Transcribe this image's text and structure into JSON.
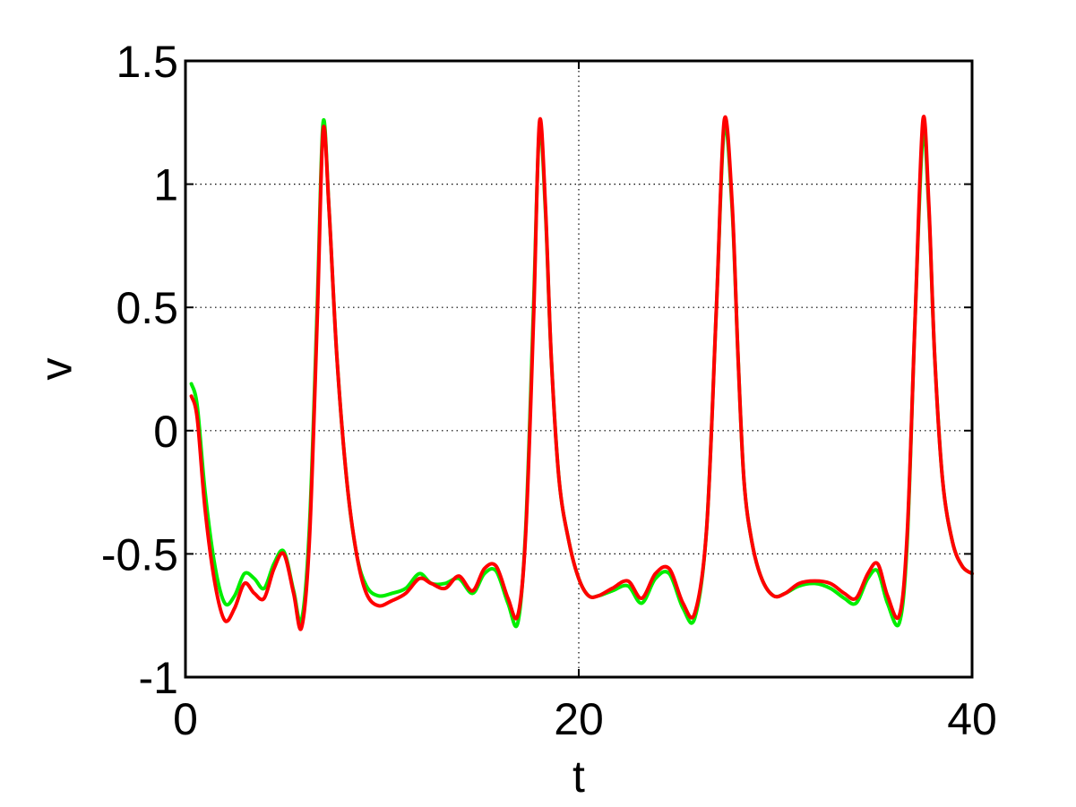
{
  "chart_data": {
    "type": "line",
    "title": "",
    "xlabel": "t",
    "ylabel": "v",
    "xlim": [
      0,
      40
    ],
    "ylim": [
      -1,
      1.5
    ],
    "xticks": [
      0,
      20,
      40
    ],
    "xtick_labels": [
      "0",
      "20",
      "40"
    ],
    "yticks": [
      -1,
      -0.5,
      0,
      0.5,
      1,
      1.5
    ],
    "ytick_labels": [
      "-1",
      "-0.5",
      "0",
      "0.5",
      "1",
      "1.5"
    ],
    "grid": true,
    "series": [
      {
        "color": "#00ee00",
        "x": [
          0.3,
          0.6,
          1.0,
          1.5,
          2.0,
          2.5,
          3.0,
          3.5,
          4.0,
          4.5,
          5.0,
          5.5,
          5.9,
          6.3,
          6.7,
          7.0,
          7.3,
          7.7,
          8.2,
          8.7,
          9.2,
          9.8,
          10.5,
          11.2,
          11.9,
          12.5,
          13.2,
          13.9,
          14.6,
          15.2,
          15.8,
          16.4,
          16.9,
          17.3,
          17.7,
          18.0,
          18.3,
          18.6,
          19.0,
          19.5,
          20.0,
          20.5,
          21.0,
          21.7,
          22.5,
          23.2,
          23.9,
          24.6,
          25.3,
          25.9,
          26.5,
          27.0,
          27.4,
          27.8,
          28.1,
          28.4,
          28.8,
          29.3,
          29.9,
          30.5,
          31.2,
          32.0,
          32.8,
          33.5,
          34.1,
          34.7,
          35.2,
          35.7,
          36.3,
          36.7,
          37.1,
          37.5,
          37.8,
          38.1,
          38.5,
          39.0,
          39.5,
          40.0
        ],
        "y": [
          0.19,
          0.1,
          -0.25,
          -0.55,
          -0.7,
          -0.67,
          -0.58,
          -0.6,
          -0.64,
          -0.54,
          -0.49,
          -0.65,
          -0.77,
          -0.4,
          0.5,
          1.25,
          0.9,
          0.3,
          -0.2,
          -0.5,
          -0.63,
          -0.67,
          -0.66,
          -0.64,
          -0.58,
          -0.62,
          -0.62,
          -0.6,
          -0.66,
          -0.58,
          -0.57,
          -0.7,
          -0.78,
          -0.4,
          0.5,
          1.22,
          0.9,
          0.3,
          -0.2,
          -0.45,
          -0.6,
          -0.67,
          -0.67,
          -0.65,
          -0.63,
          -0.7,
          -0.6,
          -0.58,
          -0.72,
          -0.76,
          -0.4,
          0.5,
          1.23,
          0.9,
          0.3,
          -0.2,
          -0.45,
          -0.6,
          -0.67,
          -0.66,
          -0.63,
          -0.62,
          -0.64,
          -0.68,
          -0.7,
          -0.6,
          -0.57,
          -0.7,
          -0.78,
          -0.45,
          0.45,
          1.2,
          0.9,
          0.3,
          -0.2,
          -0.45,
          -0.55,
          -0.58
        ]
      },
      {
        "color": "#ff0000",
        "x": [
          0.3,
          0.6,
          1.0,
          1.5,
          2.0,
          2.5,
          3.0,
          3.5,
          4.0,
          4.5,
          5.0,
          5.5,
          5.9,
          6.3,
          6.7,
          7.0,
          7.3,
          7.7,
          8.2,
          8.7,
          9.2,
          9.8,
          10.5,
          11.2,
          11.9,
          12.5,
          13.2,
          13.9,
          14.6,
          15.2,
          15.8,
          16.4,
          16.9,
          17.3,
          17.7,
          18.0,
          18.3,
          18.6,
          19.0,
          19.5,
          20.0,
          20.5,
          21.0,
          21.7,
          22.5,
          23.2,
          23.9,
          24.6,
          25.3,
          25.9,
          26.5,
          27.0,
          27.4,
          27.8,
          28.1,
          28.4,
          28.8,
          29.3,
          29.9,
          30.5,
          31.2,
          32.0,
          32.8,
          33.5,
          34.1,
          34.7,
          35.2,
          35.7,
          36.3,
          36.7,
          37.1,
          37.5,
          37.8,
          38.1,
          38.5,
          39.0,
          39.5,
          40.0
        ],
        "y": [
          0.14,
          0.05,
          -0.32,
          -0.62,
          -0.77,
          -0.72,
          -0.62,
          -0.66,
          -0.68,
          -0.56,
          -0.5,
          -0.66,
          -0.8,
          -0.45,
          0.45,
          1.22,
          0.9,
          0.3,
          -0.2,
          -0.5,
          -0.66,
          -0.71,
          -0.69,
          -0.66,
          -0.6,
          -0.62,
          -0.64,
          -0.59,
          -0.65,
          -0.56,
          -0.55,
          -0.68,
          -0.75,
          -0.42,
          0.45,
          1.25,
          0.92,
          0.3,
          -0.2,
          -0.45,
          -0.6,
          -0.67,
          -0.67,
          -0.64,
          -0.61,
          -0.68,
          -0.58,
          -0.56,
          -0.7,
          -0.74,
          -0.4,
          0.5,
          1.26,
          0.92,
          0.3,
          -0.2,
          -0.45,
          -0.6,
          -0.67,
          -0.66,
          -0.62,
          -0.61,
          -0.62,
          -0.66,
          -0.68,
          -0.58,
          -0.54,
          -0.67,
          -0.75,
          -0.42,
          0.45,
          1.26,
          0.92,
          0.3,
          -0.2,
          -0.45,
          -0.55,
          -0.58
        ]
      }
    ]
  }
}
